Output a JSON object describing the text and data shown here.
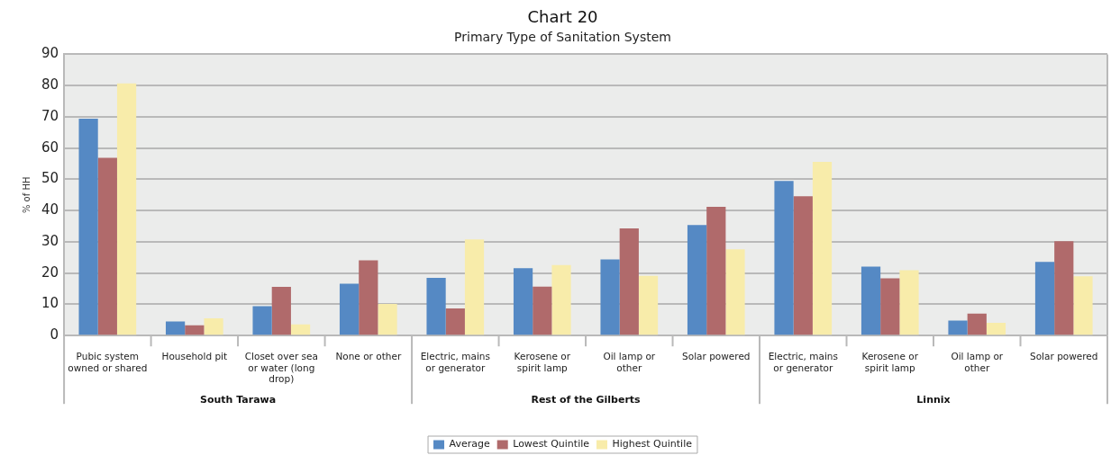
{
  "chart_data": {
    "type": "bar",
    "title": "Chart 20",
    "subtitle": "Primary Type of Sanitation System",
    "ylabel": "% of HH",
    "categories": [
      "Pubic system owned or shared",
      "Household pit",
      "Closet over sea or water (long drop)",
      "None or other",
      "Electric, mains or generator",
      "Kerosene or spirit lamp",
      "Oil lamp or other",
      "Solar powered",
      "Electric, mains or generator",
      "Kerosene or spirit lamp",
      "Oil lamp or other",
      "Solar powered"
    ],
    "series": [
      {
        "name": "Average",
        "color": "#5589c4",
        "values": [
          69.4,
          4.5,
          9.4,
          16.6,
          18.5,
          21.6,
          24.4,
          35.4,
          49.5,
          22.1,
          4.8,
          23.6
        ]
      },
      {
        "name": "Lowest Quintile",
        "color": "#b06a6b",
        "values": [
          56.9,
          3.3,
          15.6,
          24.1,
          8.7,
          15.7,
          34.3,
          41.2,
          44.6,
          18.3,
          7.0,
          30.2
        ]
      },
      {
        "name": "Highest Quintile",
        "color": "#f8ecaa",
        "values": [
          80.7,
          5.5,
          3.6,
          10.1,
          30.8,
          22.6,
          19.1,
          27.6,
          55.6,
          20.9,
          4.1,
          19.0
        ]
      }
    ],
    "annotations": [
      "South Tarawa",
      "Rest of the Gilberts",
      "Linnix"
    ],
    "ylim": [
      0,
      90
    ],
    "yticks": [
      0,
      10,
      20,
      30,
      40,
      50,
      60,
      70,
      80,
      90
    ],
    "grid": "y",
    "legend": "bottom"
  }
}
